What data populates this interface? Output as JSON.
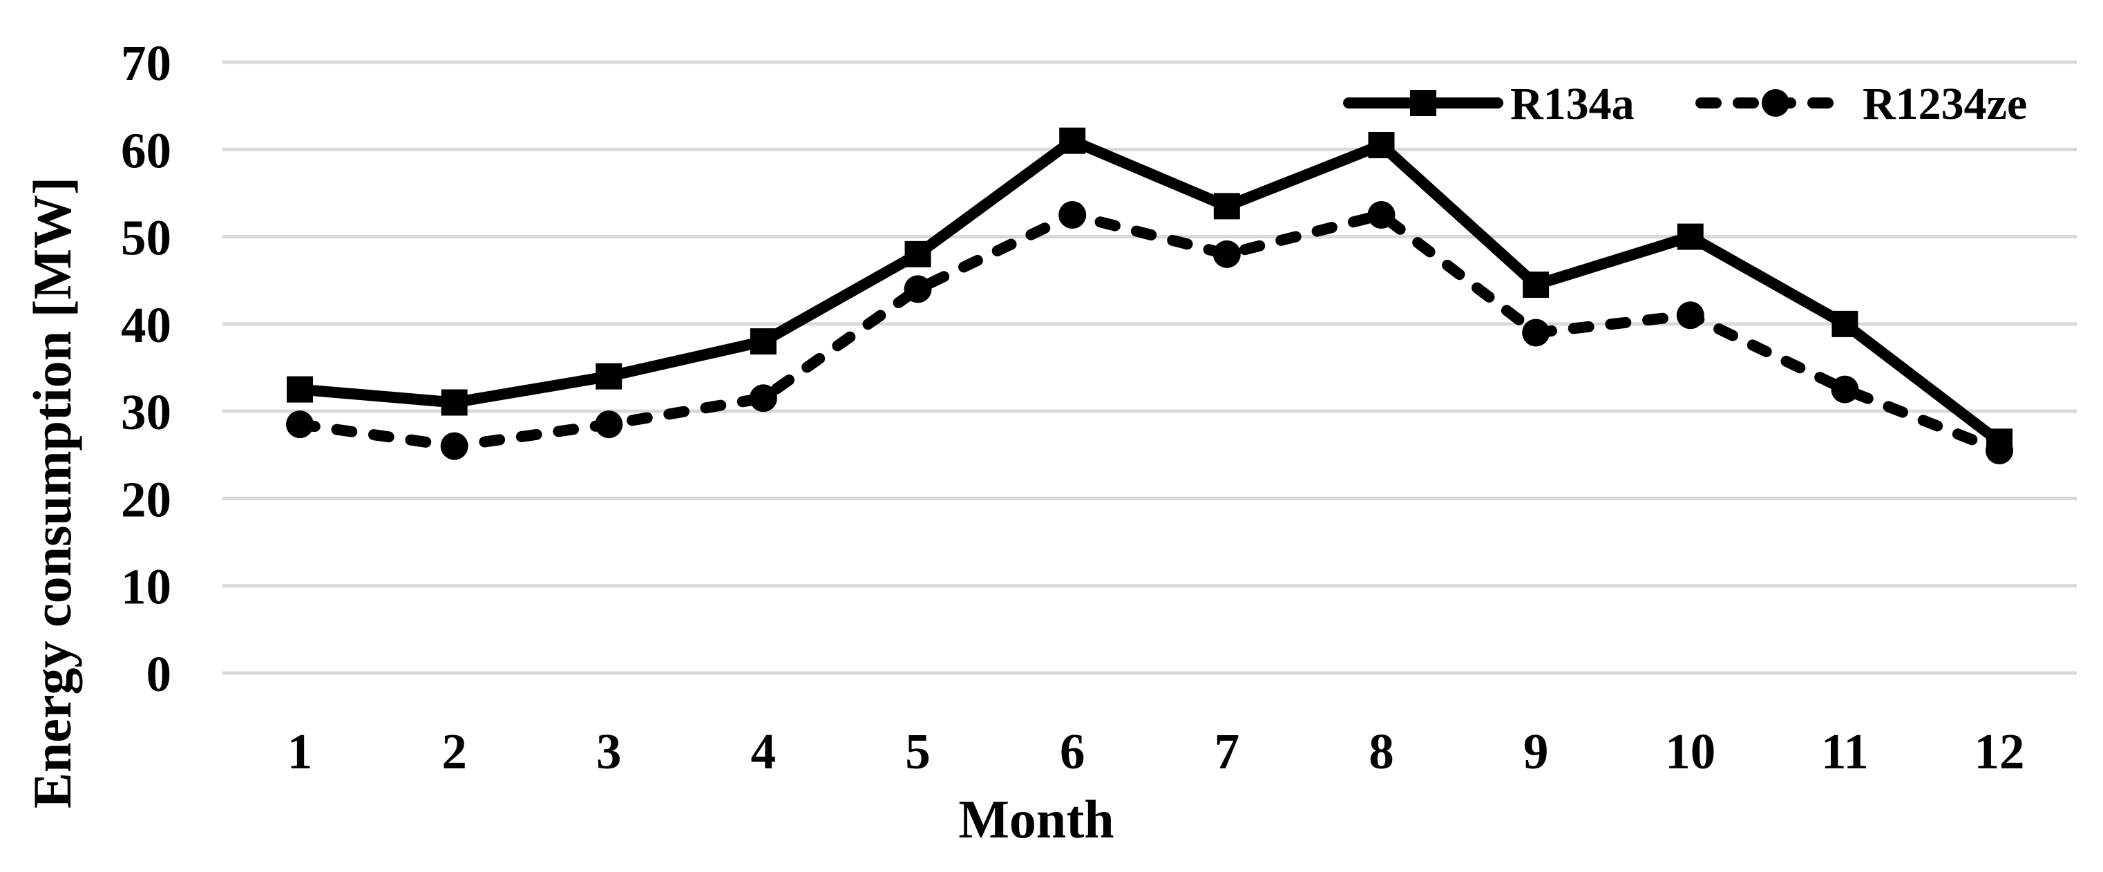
{
  "chart_data": {
    "type": "line",
    "title": "",
    "categories": [
      "1",
      "2",
      "3",
      "4",
      "5",
      "6",
      "7",
      "8",
      "9",
      "10",
      "11",
      "12"
    ],
    "xlabel": "Month",
    "ylabel": "Energy consumption [MW]",
    "ylim": [
      0,
      70
    ],
    "yticks": [
      0,
      10,
      20,
      30,
      40,
      50,
      60,
      70
    ],
    "grid": "horizontal",
    "legend_position": "top-right-inside",
    "series": [
      {
        "name": "R134a",
        "marker": "square",
        "line_style": "solid",
        "values": [
          32.5,
          31,
          34,
          38,
          48,
          61,
          53.5,
          60.5,
          44.5,
          50,
          40,
          26.5
        ]
      },
      {
        "name": "R1234ze",
        "marker": "circle",
        "line_style": "dashed",
        "values": [
          28.5,
          26,
          28.5,
          31.5,
          44,
          52.5,
          48,
          52.5,
          39,
          41,
          32.5,
          25.5
        ]
      }
    ]
  },
  "colors": {
    "background": "#ffffff",
    "gridline": "#d9d9d9",
    "series": "#000000",
    "text": "#000000"
  }
}
